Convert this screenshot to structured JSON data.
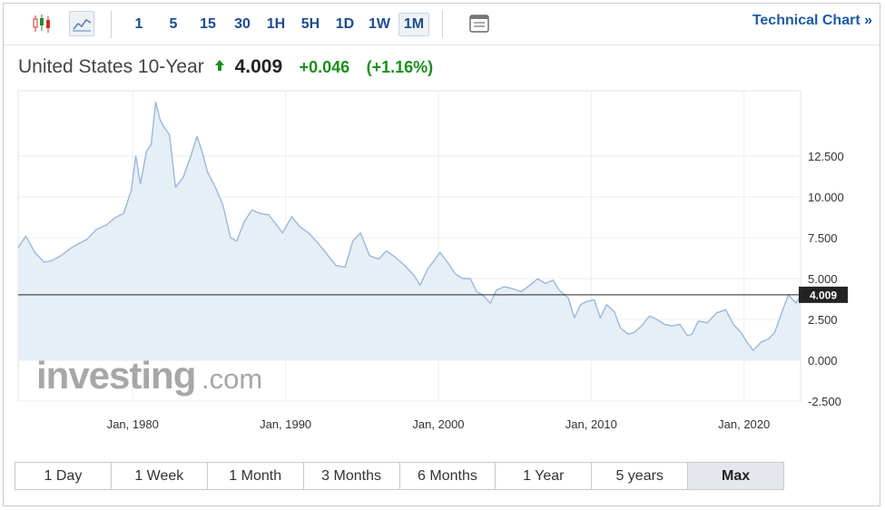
{
  "toolbar": {
    "timeframes": [
      "1",
      "5",
      "15",
      "30",
      "1H",
      "5H",
      "1D",
      "1W",
      "1M"
    ],
    "active_timeframe": "1M",
    "technical_link": "Technical Chart »"
  },
  "instrument": {
    "name": "United States 10-Year",
    "price": "4.009",
    "change": "+0.046",
    "change_pct": "(+1.16%)",
    "up_color": "#1a8f1a"
  },
  "watermark": {
    "brand": "investing",
    "suffix": ".com"
  },
  "ranges": {
    "items": [
      "1 Day",
      "1 Week",
      "1 Month",
      "3 Months",
      "6 Months",
      "1 Year",
      "5 years",
      "Max"
    ],
    "active": "Max"
  },
  "chart_data": {
    "type": "area",
    "x_unit": "year",
    "x_tick_labels": [
      "Jan, 1980",
      "Jan, 1990",
      "Jan, 2000",
      "Jan, 2010",
      "Jan, 2020"
    ],
    "x_ticks": [
      1980,
      1990,
      2000,
      2010,
      2020
    ],
    "xlim": [
      1972.5,
      2023.7
    ],
    "y_ticks": [
      -2.5,
      0,
      2.5,
      5,
      7.5,
      10,
      12.5
    ],
    "y_tick_labels": [
      "-2.500",
      "0.000",
      "2.500",
      "5.000",
      "7.500",
      "10.000",
      "12.500"
    ],
    "ylim": [
      -2.5,
      16.5
    ],
    "current_value": 4.009,
    "current_label": "4.009",
    "line_color": "#9ab9dc",
    "fill_color": "#e6eef6",
    "grid": true,
    "series": [
      {
        "x": [
          1972.5,
          1973.0,
          1973.6,
          1974.2,
          1974.7,
          1975.3,
          1976.0,
          1976.6,
          1977.0,
          1977.6,
          1978.3,
          1978.8,
          1979.4,
          1979.9,
          1980.2,
          1980.5,
          1980.9,
          1981.2,
          1981.5,
          1981.8,
          1982.1,
          1982.4,
          1982.8,
          1983.3,
          1983.8,
          1984.2,
          1984.5,
          1984.9,
          1985.4,
          1985.9,
          1986.4,
          1986.8,
          1987.3,
          1987.8,
          1988.3,
          1988.9,
          1989.4,
          1989.8,
          1990.4,
          1990.9,
          1991.5,
          1992.1,
          1992.7,
          1993.3,
          1993.9,
          1994.4,
          1994.9,
          1995.5,
          1996.1,
          1996.6,
          1997.2,
          1997.8,
          1998.4,
          1998.8,
          1999.3,
          1999.8,
          2000.1,
          2000.6,
          2001.1,
          2001.6,
          2002.1,
          2002.5,
          2002.9,
          2003.4,
          2003.8,
          2004.3,
          2004.8,
          2005.4,
          2006.0,
          2006.5,
          2007.0,
          2007.5,
          2007.9,
          2008.5,
          2008.9,
          2009.3,
          2009.7,
          2010.2,
          2010.6,
          2011.0,
          2011.5,
          2011.9,
          2012.4,
          2012.8,
          2013.3,
          2013.8,
          2014.3,
          2014.8,
          2015.3,
          2015.8,
          2016.3,
          2016.6,
          2017.0,
          2017.6,
          2018.2,
          2018.8,
          2019.3,
          2019.8,
          2020.2,
          2020.6,
          2021.1,
          2021.6,
          2022.0,
          2022.5,
          2022.9,
          2023.4,
          2023.7
        ],
        "y": [
          6.9,
          7.6,
          6.6,
          6.0,
          6.1,
          6.4,
          6.9,
          7.2,
          7.4,
          8.0,
          8.3,
          8.7,
          9.0,
          10.4,
          12.5,
          10.8,
          12.8,
          13.2,
          15.8,
          14.7,
          14.2,
          13.8,
          10.6,
          11.2,
          12.5,
          13.7,
          12.9,
          11.5,
          10.6,
          9.5,
          7.5,
          7.3,
          8.5,
          9.2,
          9.0,
          8.9,
          8.3,
          7.8,
          8.8,
          8.2,
          7.8,
          7.2,
          6.5,
          5.8,
          5.7,
          7.3,
          7.8,
          6.4,
          6.2,
          6.7,
          6.3,
          5.8,
          5.2,
          4.6,
          5.6,
          6.2,
          6.6,
          6.0,
          5.3,
          5.0,
          5.0,
          4.2,
          4.0,
          3.5,
          4.3,
          4.5,
          4.4,
          4.2,
          4.6,
          5.0,
          4.7,
          4.9,
          4.3,
          3.8,
          2.6,
          3.4,
          3.6,
          3.7,
          2.6,
          3.4,
          3.0,
          2.0,
          1.6,
          1.7,
          2.1,
          2.7,
          2.5,
          2.2,
          2.1,
          2.2,
          1.5,
          1.6,
          2.4,
          2.3,
          2.9,
          3.1,
          2.2,
          1.7,
          1.1,
          0.6,
          1.1,
          1.3,
          1.7,
          3.0,
          4.0,
          3.5,
          4.0
        ]
      }
    ]
  }
}
